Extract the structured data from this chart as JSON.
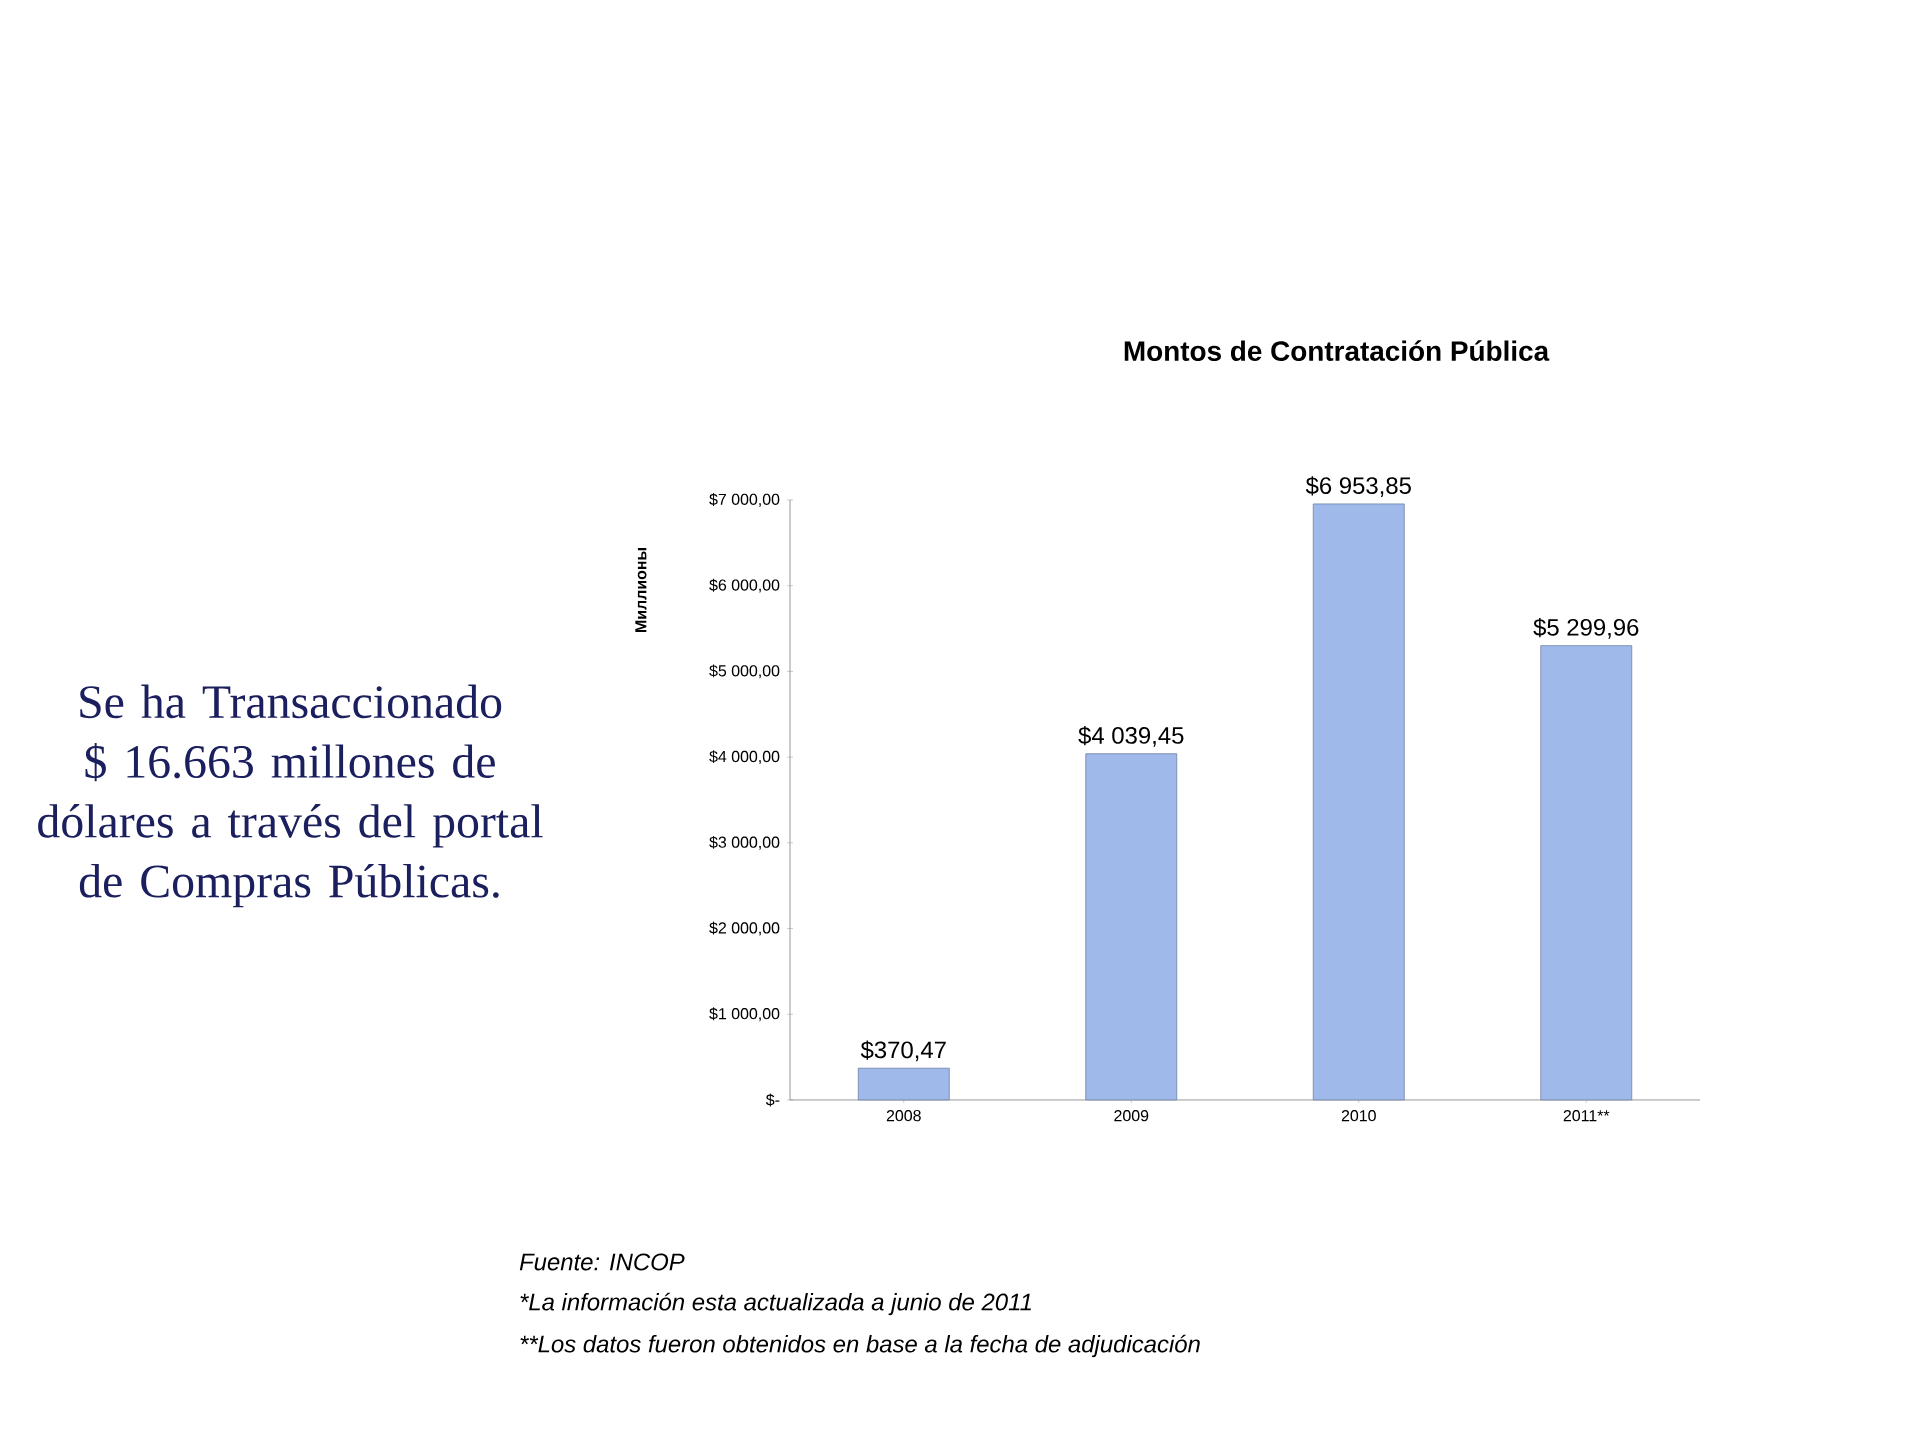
{
  "chart_data": {
    "type": "bar",
    "title": "Montos de Contratación Pública",
    "ylabel": "Миллионы",
    "categories": [
      "2008",
      "2009",
      "2010",
      "2011**"
    ],
    "values": [
      370.47,
      4039.45,
      6953.85,
      5299.96
    ],
    "value_labels": [
      "$370,47",
      "$4 039,45",
      "$6 953,85",
      "$5 299,96"
    ],
    "color": "#9fb9ea",
    "ylim": [
      0,
      7000
    ],
    "yticks": [
      {
        "value": 0,
        "label": "$-"
      },
      {
        "value": 1000,
        "label": "$1 000,00"
      },
      {
        "value": 2000,
        "label": "$2 000,00"
      },
      {
        "value": 3000,
        "label": "$3 000,00"
      },
      {
        "value": 4000,
        "label": "$4 000,00"
      },
      {
        "value": 5000,
        "label": "$5 000,00"
      },
      {
        "value": 6000,
        "label": "$6 000,00"
      },
      {
        "value": 7000,
        "label": "$7 000,00"
      }
    ],
    "grid": false,
    "annotations": [
      "Se ha Transaccionado $ 16.663 millones de dólares a través del portal de Compras Públicas.",
      "Fuente: INCOP",
      "*La información esta actualizada a junio de 2011",
      "**Los datos fueron obtenidos en base a la fecha de adjudicación"
    ]
  }
}
